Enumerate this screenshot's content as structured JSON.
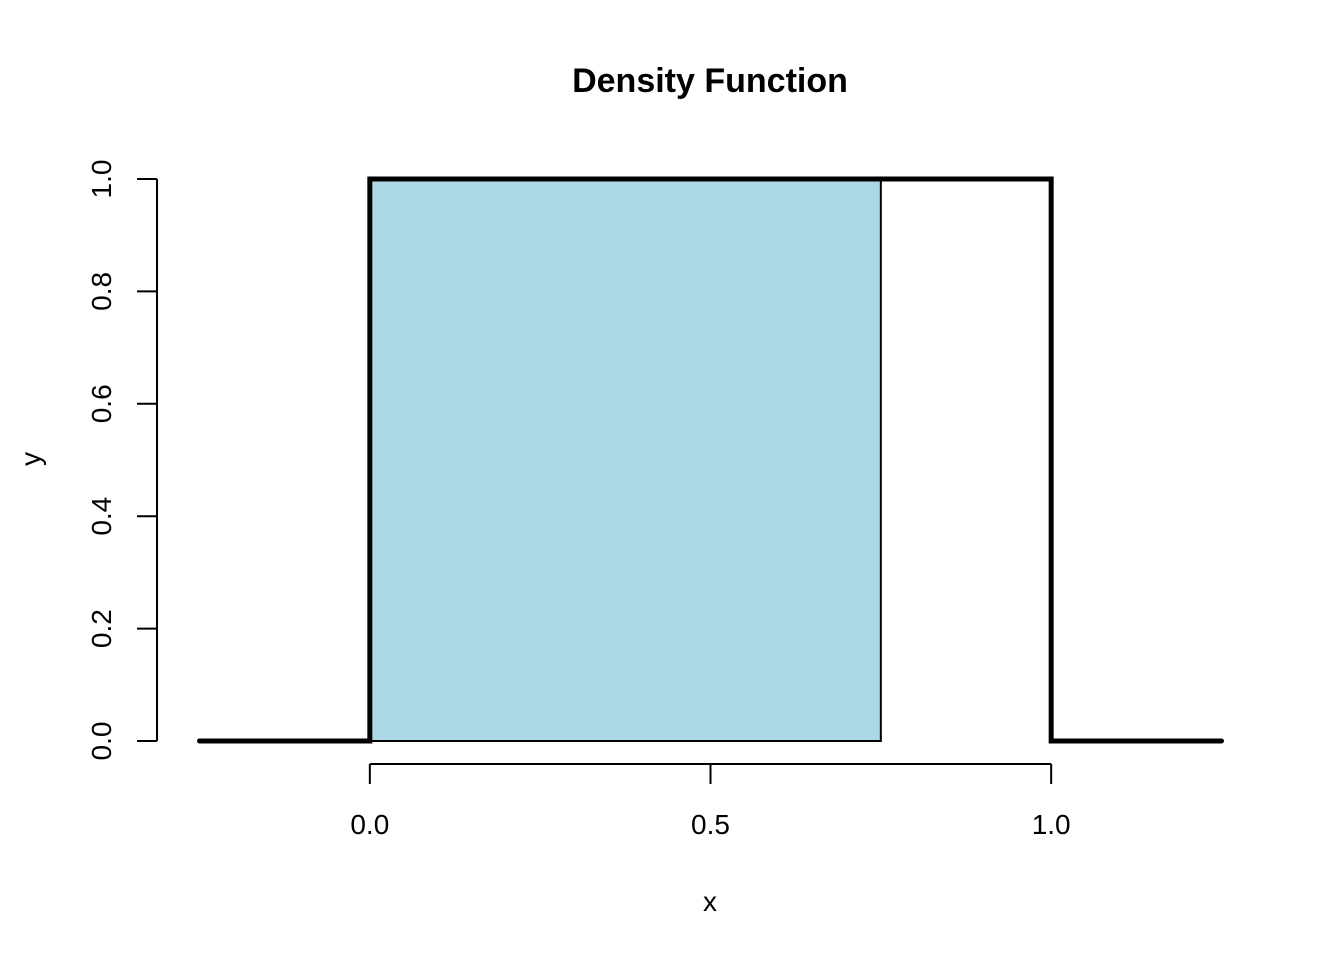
{
  "chart_data": {
    "type": "line",
    "title": "Density Function",
    "xlabel": "x",
    "ylabel": "y",
    "xlim": [
      -0.25,
      1.25
    ],
    "ylim": [
      0,
      1
    ],
    "x_ticks": [
      {
        "value": 0.0,
        "label": "0.0"
      },
      {
        "value": 0.5,
        "label": "0.5"
      },
      {
        "value": 1.0,
        "label": "1.0"
      }
    ],
    "y_ticks": [
      {
        "value": 0.0,
        "label": "0.0"
      },
      {
        "value": 0.2,
        "label": "0.2"
      },
      {
        "value": 0.4,
        "label": "0.4"
      },
      {
        "value": 0.6,
        "label": "0.6"
      },
      {
        "value": 0.8,
        "label": "0.8"
      },
      {
        "value": 1.0,
        "label": "1.0"
      }
    ],
    "series": [
      {
        "x": [
          -0.25,
          0.0,
          0.0,
          1.0,
          1.0,
          1.25
        ],
        "y": [
          0,
          0,
          1,
          1,
          0,
          0
        ],
        "color": "#000000"
      }
    ],
    "shaded_region": {
      "x_from": 0.0,
      "x_to": 0.75,
      "y_from": 0,
      "y_to": 1,
      "fill": "#add8e6"
    },
    "grid": false,
    "legend": "none"
  }
}
